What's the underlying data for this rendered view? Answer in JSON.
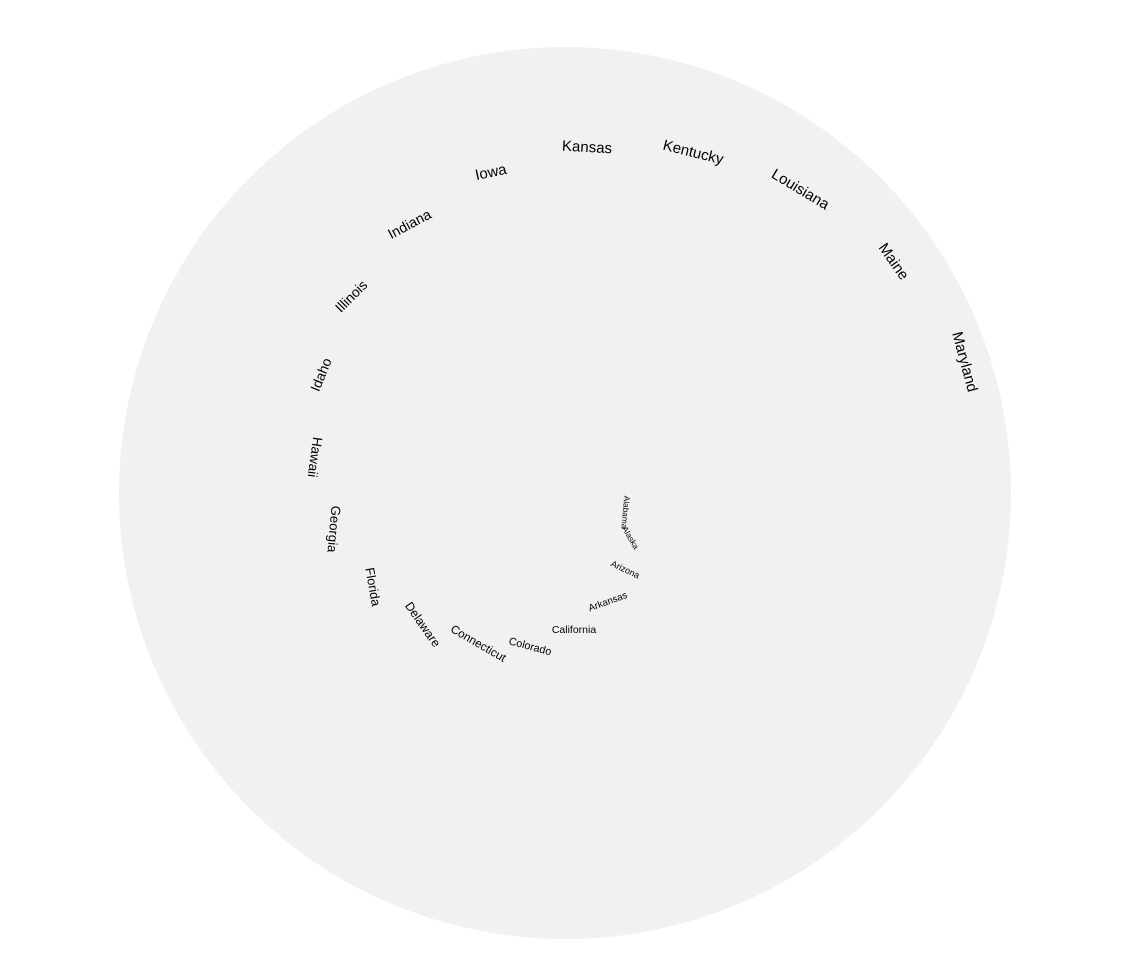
{
  "diagram": {
    "type": "spiral-text",
    "colors": {
      "background": "#ffffff",
      "disc": "#f1f1f1",
      "text": "#000000"
    },
    "labels": [
      "Alabama",
      "Alaska",
      "Arizona",
      "Arkansas",
      "California",
      "Colorado",
      "Connecticut",
      "Delaware",
      "Florida",
      "Georgia",
      "Hawaii",
      "Idaho",
      "Illinois",
      "Indiana",
      "Iowa",
      "Kansas",
      "Kentucky",
      "Louisiana",
      "Maine",
      "Maryland"
    ]
  }
}
